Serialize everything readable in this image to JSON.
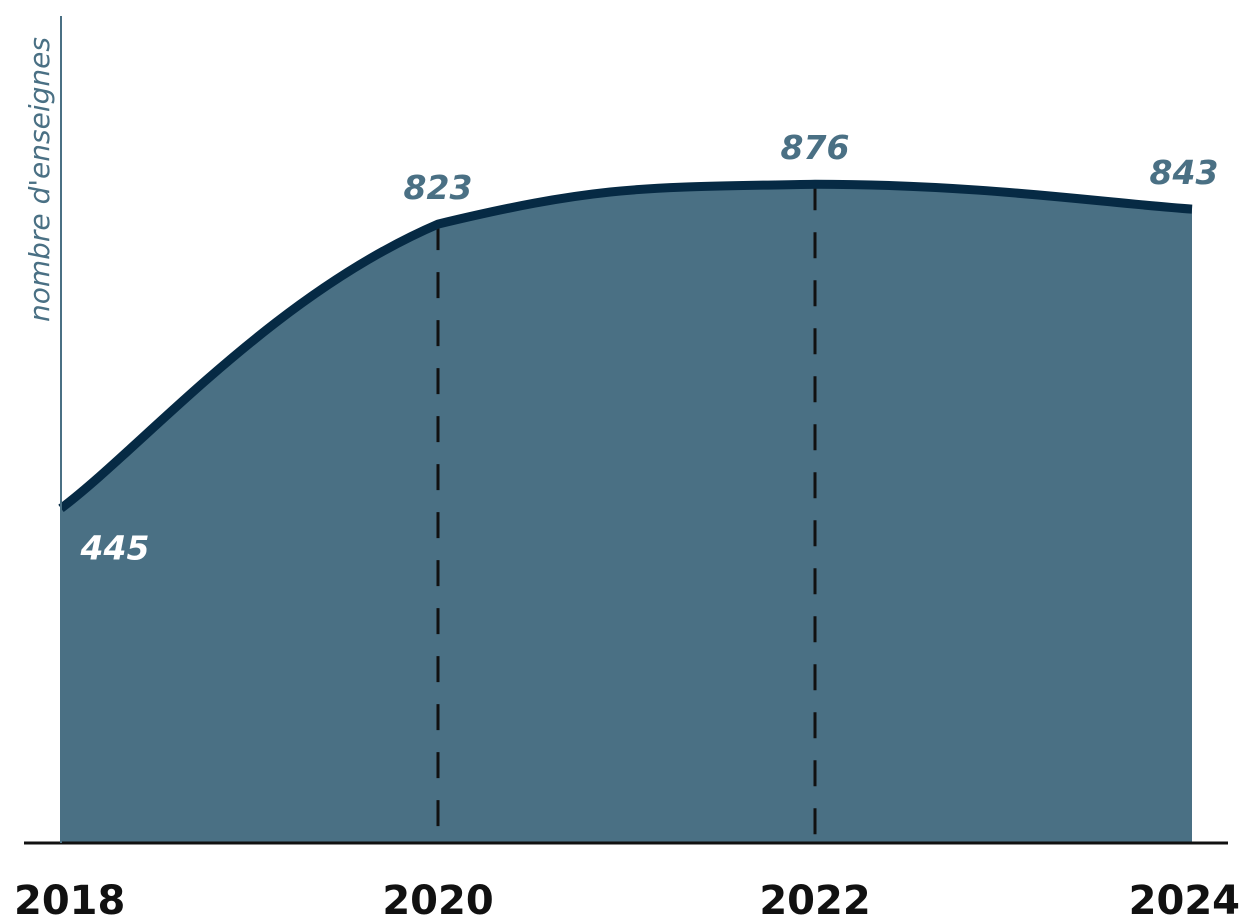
{
  "chart_data": {
    "type": "area",
    "x": [
      2018,
      2020,
      2022,
      2024
    ],
    "values": [
      445,
      823,
      876,
      843
    ],
    "data_labels": [
      "445",
      "823",
      "876",
      "843"
    ],
    "tick_labels": [
      "2018",
      "2020",
      "2022",
      "2024"
    ],
    "ylabel": "nombre d'enseignes",
    "xlim": [
      2018,
      2024
    ],
    "ylim": [
      0,
      1000
    ],
    "grid": false,
    "dashed_guides_at": [
      2020,
      2022
    ],
    "colors": {
      "fill": "#4a7084",
      "line": "#062a44",
      "axis": "#111111",
      "y_axis": "#4a7084",
      "label_outside": "#4a7084",
      "label_inside": "#ffffff",
      "guide": "#111111"
    }
  }
}
